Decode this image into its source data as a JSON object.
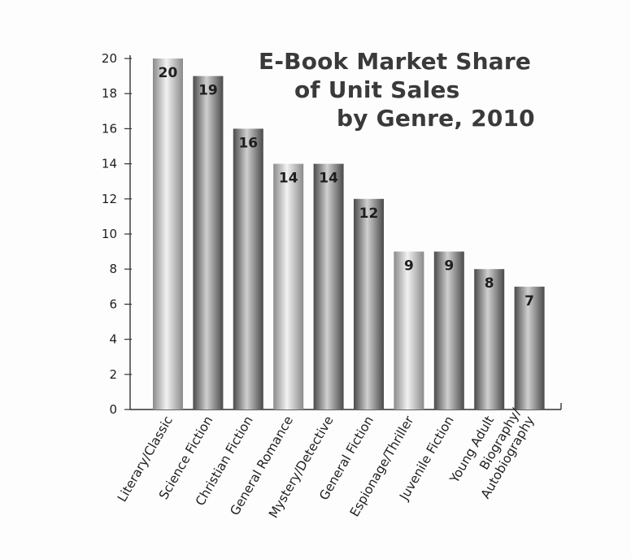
{
  "chart_data": {
    "type": "bar",
    "title_lines": [
      "E-Book Market Share",
      "of Unit Sales",
      "by Genre, 2010"
    ],
    "xlabel": "",
    "ylabel": "",
    "ylim": [
      0,
      20
    ],
    "yticks": [
      0,
      2,
      4,
      6,
      8,
      10,
      12,
      14,
      16,
      18,
      20
    ],
    "grid": false,
    "legend": "none",
    "categories": [
      "Literary/Classic",
      "Science Fiction",
      "Christian Fiction",
      "General Romance",
      "Mystery/Detective",
      "General Fiction",
      "Espionage/Thriller",
      "Juvenile Fiction",
      "Young Adult",
      "Biography/ Autobiography"
    ],
    "category_lines": [
      [
        "Literary/Classic"
      ],
      [
        "Science Fiction"
      ],
      [
        "Christian Fiction"
      ],
      [
        "General Romance"
      ],
      [
        "Mystery/Detective"
      ],
      [
        "General Fiction"
      ],
      [
        "Espionage/Thriller"
      ],
      [
        "Juvenile Fiction"
      ],
      [
        "Young Adult"
      ],
      [
        "Biography/",
        "Autobiography"
      ]
    ],
    "values": [
      20,
      19,
      16,
      14,
      14,
      12,
      9,
      9,
      8,
      7
    ],
    "bar_shades": [
      "light",
      "dark",
      "dark",
      "light",
      "dark",
      "dark",
      "light",
      "dark",
      "dark",
      "dark"
    ],
    "colors": {
      "light_edge": "#8a8a8a",
      "light_mid": "#f2f2f2",
      "dark_edge": "#4a4a4a",
      "dark_mid": "#d0d0d0",
      "axis": "#333333",
      "text": "#1e1e1e"
    }
  }
}
